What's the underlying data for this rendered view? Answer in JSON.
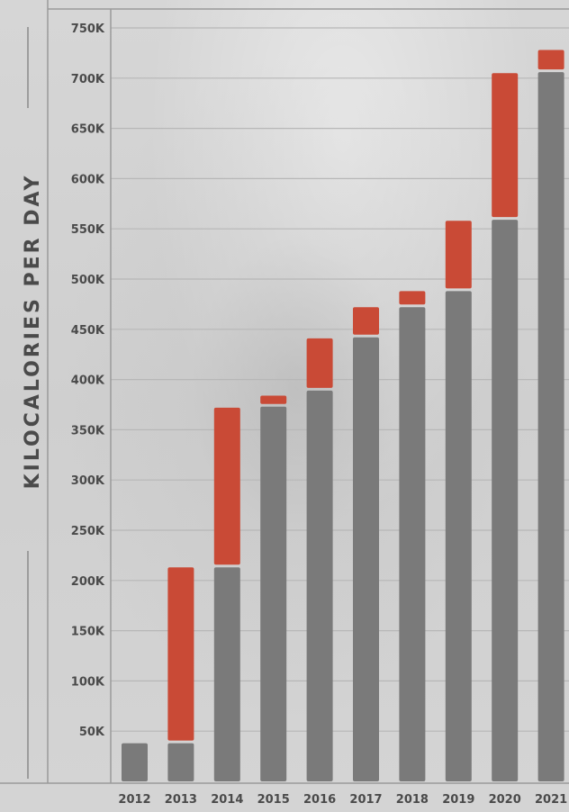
{
  "chart_data": {
    "type": "bar",
    "ylabel": "KILOCALORIES PER DAY",
    "categories": [
      "2012",
      "2013",
      "2014",
      "2015",
      "2016",
      "2017",
      "2018",
      "2019",
      "2020",
      "2021"
    ],
    "ylim": [
      0,
      780000
    ],
    "yticks": [
      50000,
      100000,
      150000,
      200000,
      250000,
      300000,
      350000,
      400000,
      450000,
      500000,
      550000,
      600000,
      650000,
      700000,
      750000
    ],
    "ytick_labels": [
      "50K",
      "100K",
      "150K",
      "200K",
      "250K",
      "300K",
      "350K",
      "400K",
      "450K",
      "500K",
      "550K",
      "600K",
      "650K",
      "700K",
      "750K"
    ],
    "grid": true,
    "stacked": true,
    "series": [
      {
        "color": "#7a7a7a",
        "values": [
          38000,
          38000,
          213000,
          373000,
          389000,
          442000,
          472000,
          488000,
          559000,
          706000
        ]
      },
      {
        "color": "#c94a36",
        "values": [
          0,
          175000,
          159000,
          11000,
          52000,
          30000,
          16000,
          70000,
          146000,
          22000
        ]
      }
    ]
  }
}
